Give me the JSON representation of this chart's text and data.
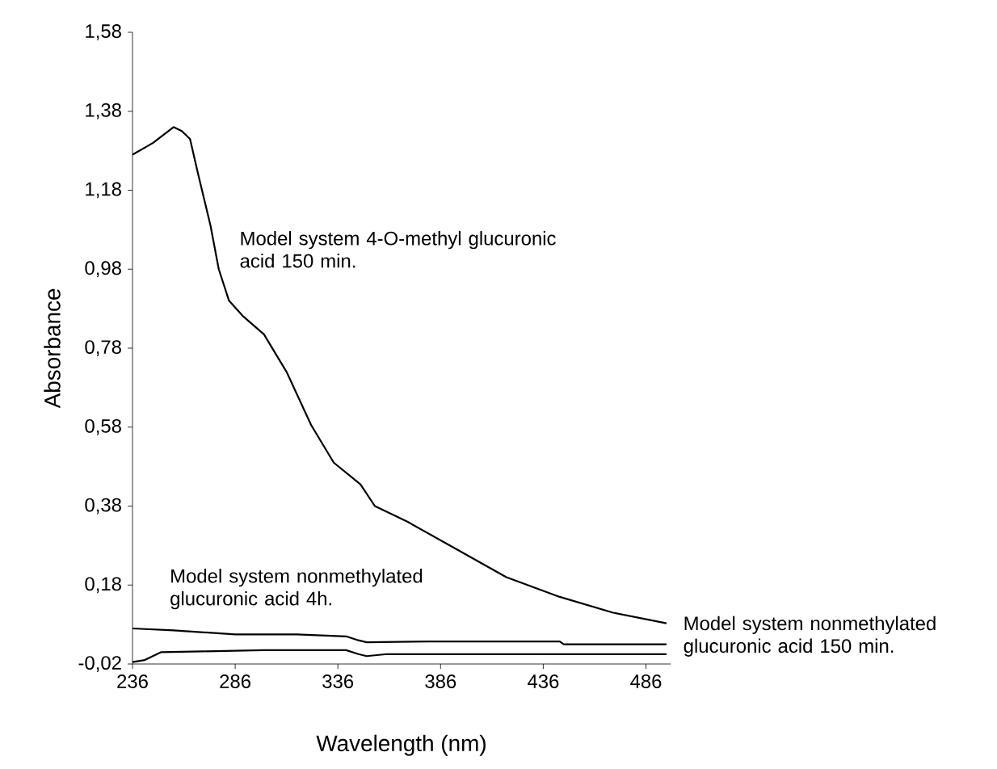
{
  "chart_data": {
    "type": "line",
    "xlabel": "Wavelength (nm)",
    "ylabel": "Absorbance",
    "xlim": [
      236,
      498
    ],
    "ylim": [
      -0.02,
      1.58
    ],
    "xticks": [
      236,
      286,
      336,
      386,
      436,
      486
    ],
    "yticks": [
      {
        "value": -0.02,
        "label": "-0,02"
      },
      {
        "value": 0.18,
        "label": "0,18"
      },
      {
        "value": 0.38,
        "label": "0,38"
      },
      {
        "value": 0.58,
        "label": "0,58"
      },
      {
        "value": 0.78,
        "label": "0,78"
      },
      {
        "value": 0.98,
        "label": "0,98"
      },
      {
        "value": 1.18,
        "label": "1,18"
      },
      {
        "value": 1.38,
        "label": "1,38"
      },
      {
        "value": 1.58,
        "label": "1,58"
      }
    ],
    "series": [
      {
        "name": "Model system 4-O-methyl glucuronic acid 150 min.",
        "color": "#000000",
        "x": [
          236,
          246,
          256,
          260,
          264,
          268,
          274,
          278,
          283,
          290,
          300,
          311,
          323,
          334,
          347,
          354,
          370,
          394,
          418,
          444,
          470,
          496
        ],
        "values": [
          1.27,
          1.3,
          1.34,
          1.33,
          1.31,
          1.22,
          1.09,
          0.98,
          0.9,
          0.86,
          0.815,
          0.72,
          0.585,
          0.49,
          0.435,
          0.38,
          0.34,
          0.27,
          0.2,
          0.15,
          0.11,
          0.083
        ]
      },
      {
        "name": "Model system nonmethylated glucuronic acid 4h.",
        "color": "#000000",
        "x": [
          236,
          256,
          286,
          316,
          340,
          346,
          350,
          380,
          410,
          444,
          446,
          496
        ],
        "values": [
          0.07,
          0.065,
          0.055,
          0.055,
          0.05,
          0.04,
          0.035,
          0.037,
          0.037,
          0.037,
          0.03,
          0.03
        ]
      },
      {
        "name": "Model system nonmethylated glucuronic acid 150 min.",
        "color": "#000000",
        "x": [
          236,
          242,
          250,
          270,
          300,
          340,
          346,
          350,
          360,
          400,
          496
        ],
        "values": [
          -0.015,
          -0.01,
          0.01,
          0.012,
          0.015,
          0.015,
          0.005,
          0.0,
          0.005,
          0.005,
          0.005
        ]
      }
    ]
  }
}
